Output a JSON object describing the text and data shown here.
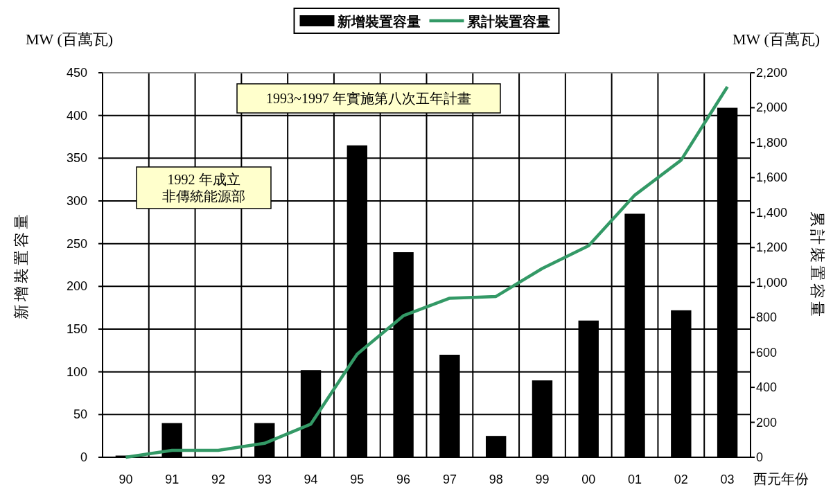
{
  "chart_data": {
    "type": "bar",
    "categories": [
      "90",
      "91",
      "92",
      "93",
      "94",
      "95",
      "96",
      "97",
      "98",
      "99",
      "00",
      "01",
      "02",
      "03"
    ],
    "series": [
      {
        "name": "新增裝置容量",
        "color": "#000000",
        "values": [
          2,
          40,
          0,
          40,
          102,
          365,
          240,
          120,
          25,
          90,
          160,
          285,
          172,
          409
        ]
      },
      {
        "name": "累計裝置容量",
        "type": "line",
        "axis": "y2",
        "color": "#339966",
        "values": [
          0,
          40,
          40,
          80,
          190,
          590,
          810,
          910,
          920,
          1080,
          1210,
          1500,
          1700,
          2120
        ]
      }
    ],
    "xlabel": "西元年份",
    "ylabel": "新增裝置容量",
    "y2label": "累計裝置容量",
    "ylim": [
      0,
      450
    ],
    "yticks": [
      0,
      50,
      100,
      150,
      200,
      250,
      300,
      350,
      400,
      450
    ],
    "y2lim": [
      0,
      2200
    ],
    "y2ticks": [
      0,
      200,
      400,
      600,
      800,
      {
        "value": 1000,
        "label": "1,000"
      },
      {
        "value": 1200,
        "label": "1,200"
      },
      {
        "value": 1400,
        "label": "1,400"
      },
      {
        "value": 1600,
        "label": "1,600"
      },
      {
        "value": 1800,
        "label": "1,800"
      },
      {
        "value": 2000,
        "label": "2,000"
      },
      {
        "value": 2200,
        "label": "2,200"
      }
    ],
    "annotations": [
      "1993~1997 年實施第八次五年計畫",
      "1992 年成立",
      "非傳統能源部",
      "MW (百萬瓦)",
      "MW (百萬瓦)"
    ],
    "grid": true,
    "legend": "top",
    "marker": "none"
  }
}
